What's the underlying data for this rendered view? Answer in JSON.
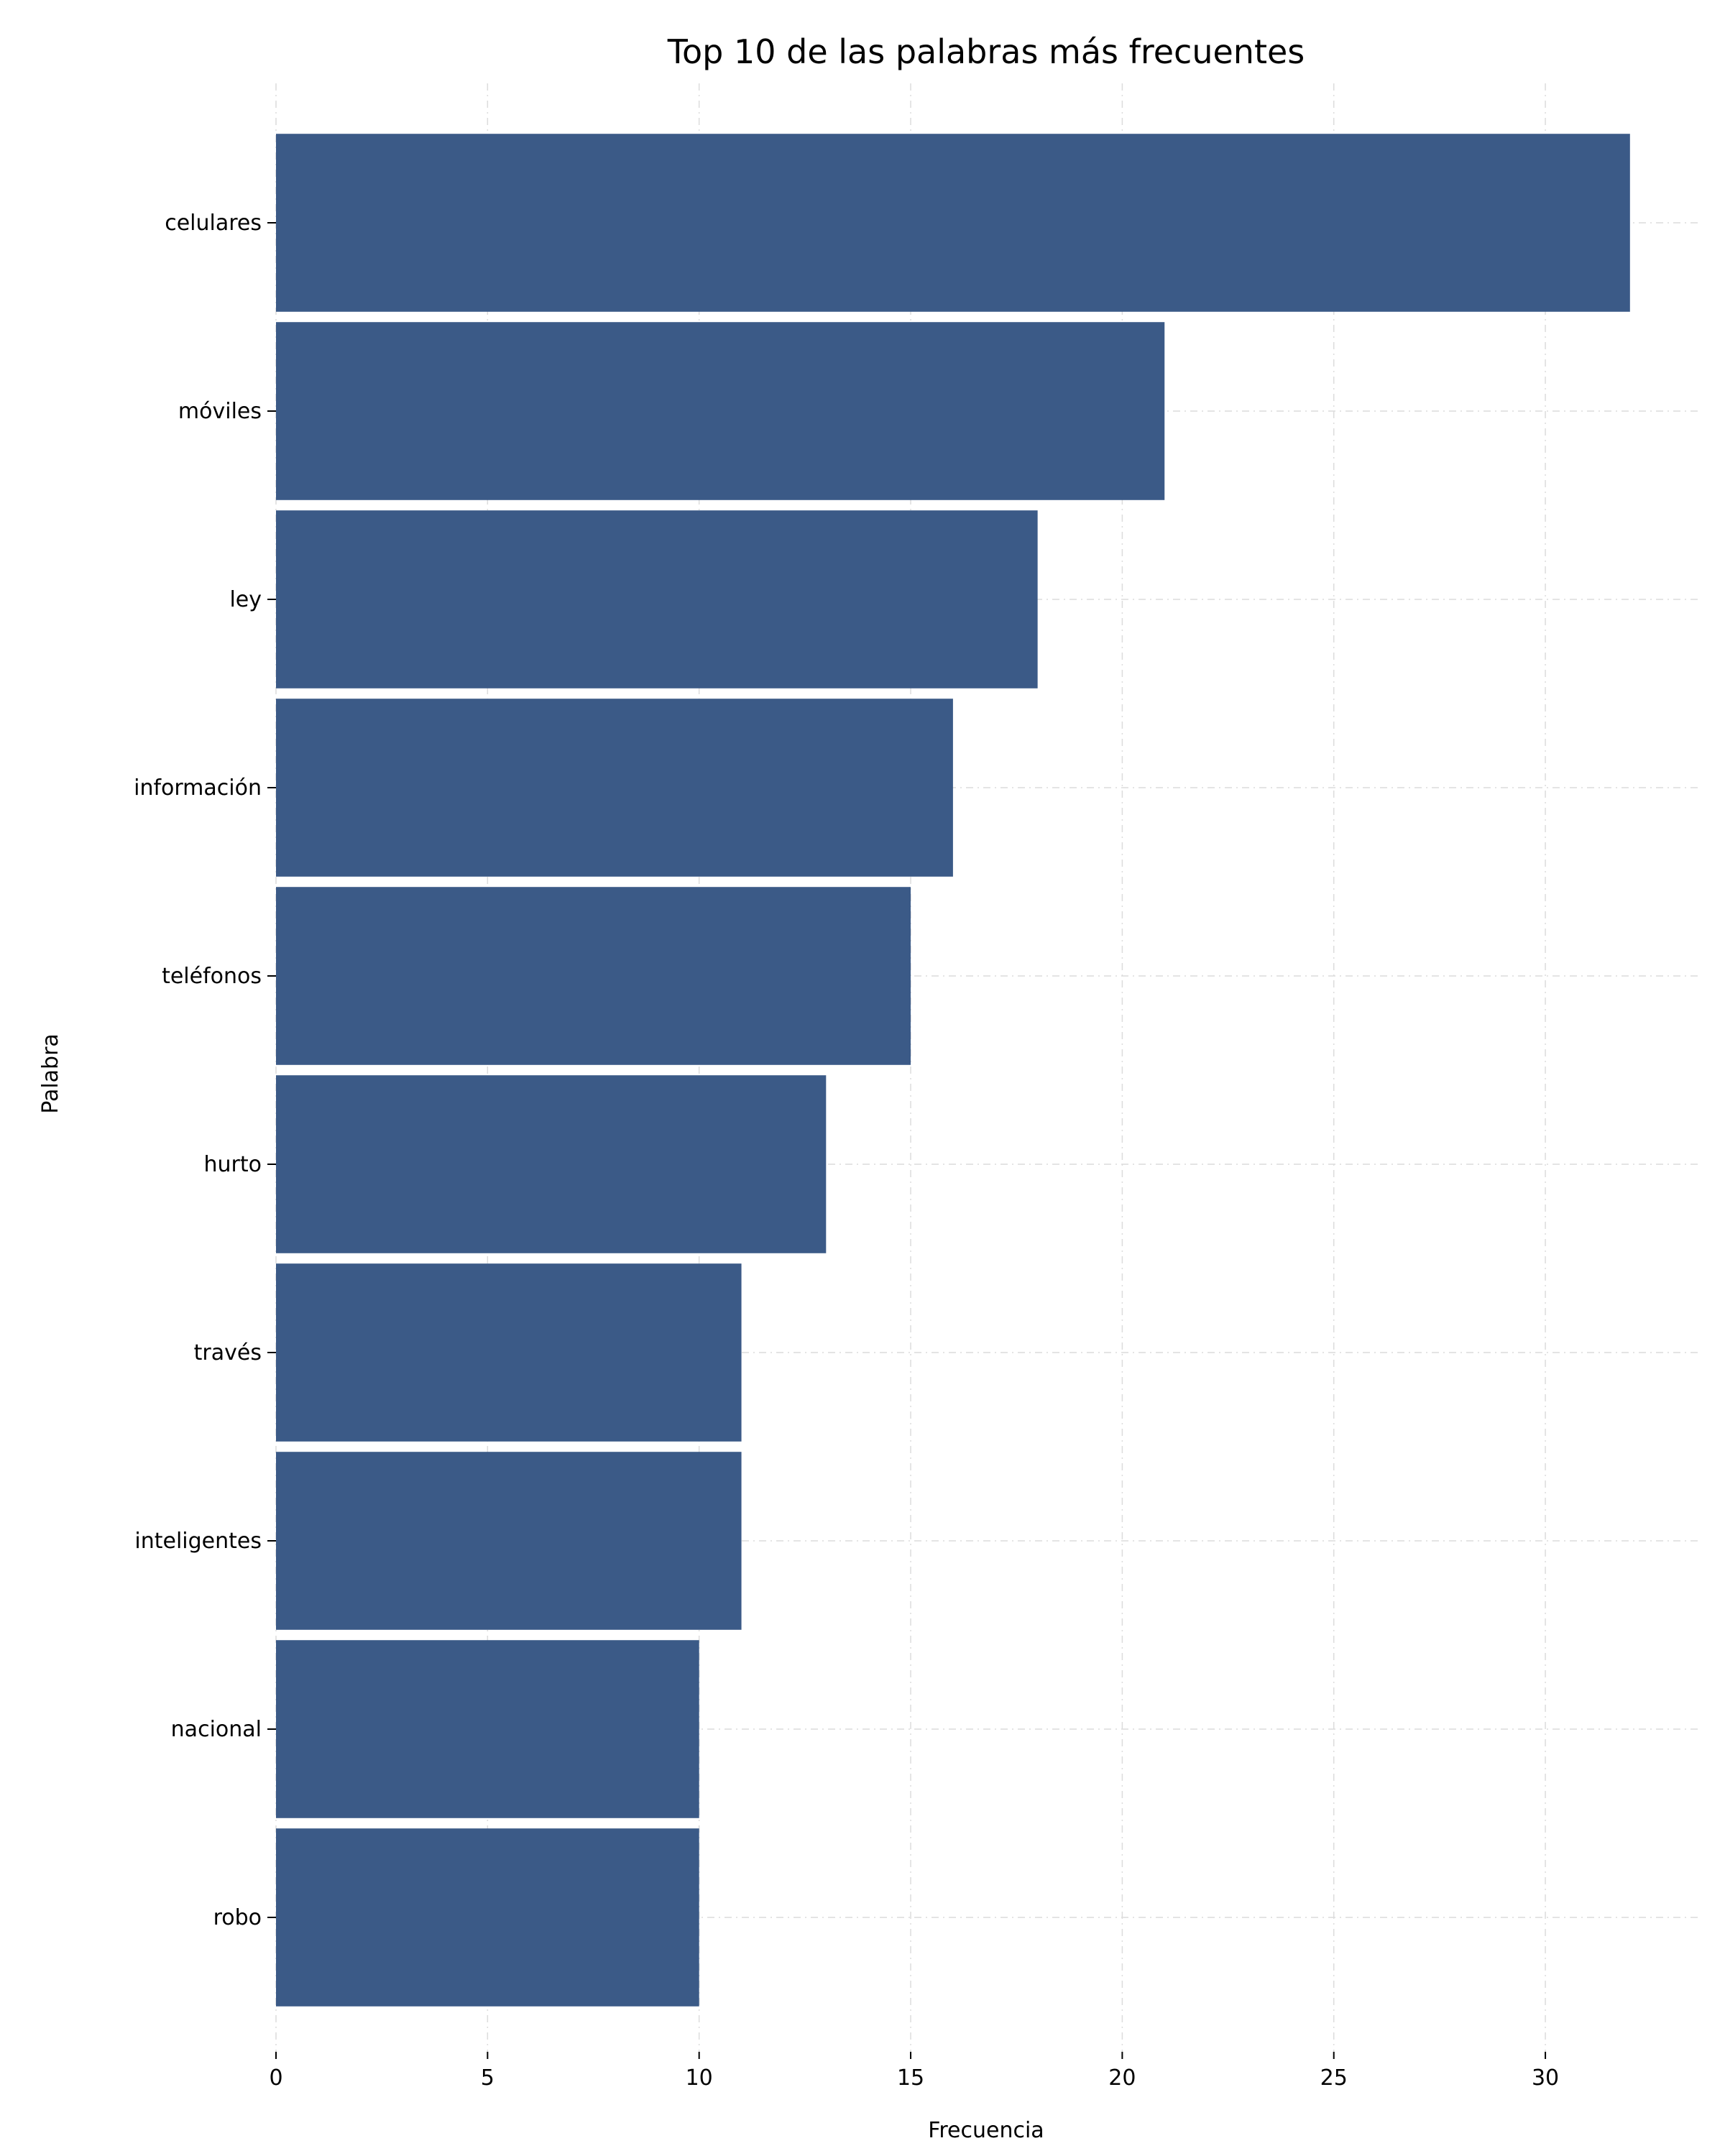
{
  "chart_data": {
    "type": "bar",
    "orientation": "horizontal",
    "title": "Top 10 de las palabras más frecuentes",
    "xlabel": "Frecuencia",
    "ylabel": "Palabra",
    "categories": [
      "celulares",
      "móviles",
      "ley",
      "información",
      "teléfonos",
      "hurto",
      "través",
      "inteligentes",
      "nacional",
      "robo"
    ],
    "values": [
      32,
      21,
      18,
      16,
      15,
      13,
      11,
      11,
      10,
      10
    ],
    "xlim": [
      0,
      33.6
    ],
    "xticks": [
      0,
      5,
      10,
      15,
      20,
      25,
      30
    ],
    "grid": true,
    "bar_color": "#3b5a87"
  }
}
